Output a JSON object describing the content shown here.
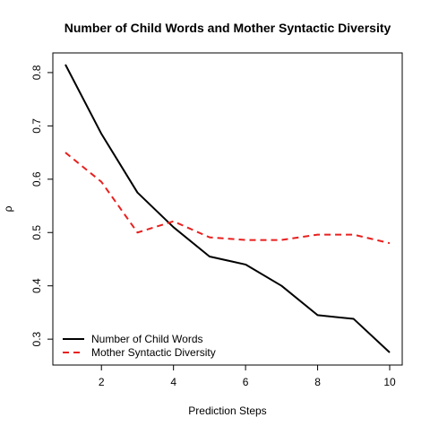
{
  "chart_data": {
    "type": "line",
    "title": "Number of Child Words and Mother Syntactic Diversity",
    "xlabel": "Prediction Steps",
    "ylabel": "ρ",
    "x": [
      1,
      2,
      3,
      4,
      5,
      6,
      7,
      8,
      9,
      10
    ],
    "xlim": [
      1,
      10
    ],
    "ylim": [
      0.275,
      0.815
    ],
    "xticks": [
      2,
      4,
      6,
      8,
      10
    ],
    "yticks": [
      0.3,
      0.4,
      0.5,
      0.6,
      0.7,
      0.8
    ],
    "grid": false,
    "legend_position": "bottom-left",
    "series": [
      {
        "name": "Number of Child Words",
        "color": "#000000",
        "line_style": "solid",
        "values": [
          0.815,
          0.685,
          0.575,
          0.51,
          0.455,
          0.44,
          0.4,
          0.345,
          0.338,
          0.275
        ]
      },
      {
        "name": "Mother Syntactic Diversity",
        "color": "#e8201f",
        "line_style": "dashed",
        "values": [
          0.65,
          0.595,
          0.5,
          0.521,
          0.491,
          0.486,
          0.486,
          0.496,
          0.496,
          0.48
        ]
      }
    ]
  }
}
